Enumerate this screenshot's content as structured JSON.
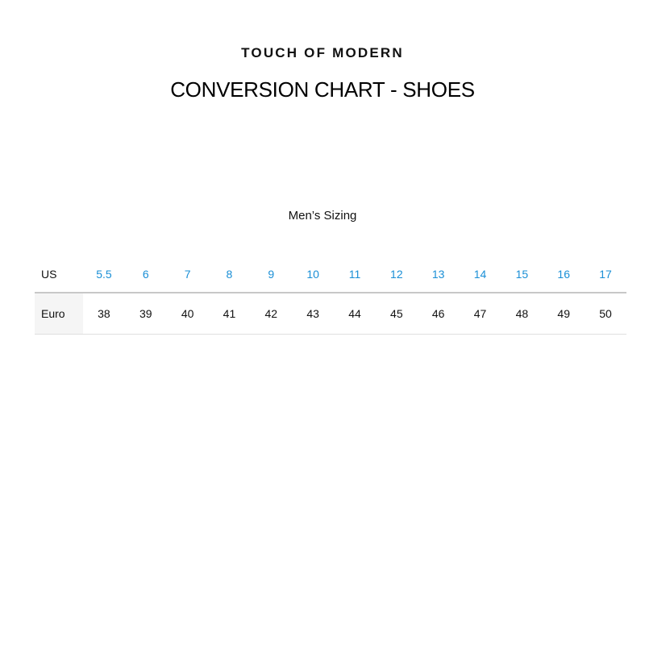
{
  "brand": "TOUCH OF MODERN",
  "title": "CONVERSION CHART - SHOES",
  "subtitle": "Men’s Sizing",
  "table": {
    "rows": [
      {
        "label": "US",
        "values": [
          "5.5",
          "6",
          "7",
          "8",
          "9",
          "10",
          "11",
          "12",
          "13",
          "14",
          "15",
          "16",
          "17"
        ]
      },
      {
        "label": "Euro",
        "values": [
          "38",
          "39",
          "40",
          "41",
          "42",
          "43",
          "44",
          "45",
          "46",
          "47",
          "48",
          "49",
          "50"
        ]
      }
    ]
  },
  "colors": {
    "us_values": "#1a8fd6",
    "label_cell_bg": "#f5f5f5"
  }
}
